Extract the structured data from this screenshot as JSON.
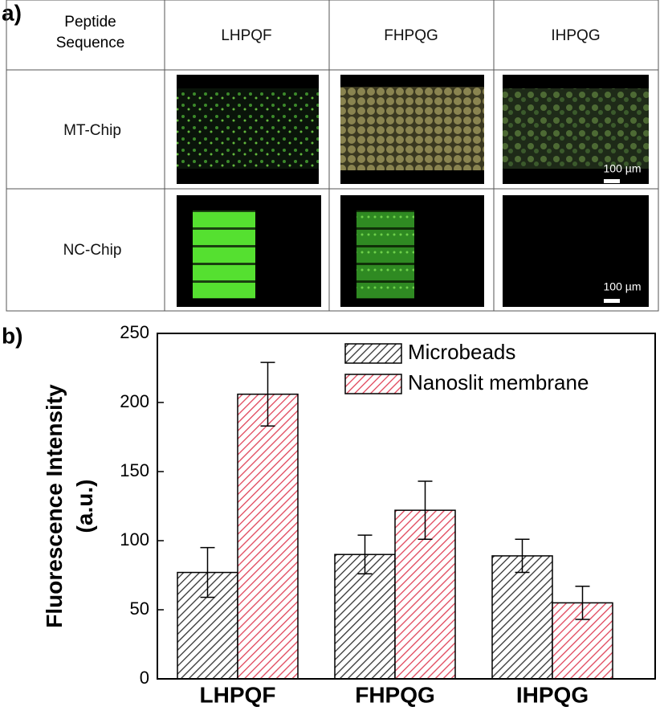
{
  "panel_labels": [
    "a)",
    "b)"
  ],
  "panel_a": {
    "header": [
      "Peptide Sequence",
      "LHPQF",
      "FHPQG",
      "IHPQG"
    ],
    "rows": [
      {
        "label": "MT-Chip",
        "scale_bar": "100 µm"
      },
      {
        "label": "NC-Chip",
        "scale_bar": "100 µm"
      }
    ]
  },
  "chart_data": {
    "type": "bar",
    "ylabel": [
      "Fluorescence Intensity",
      "(a.u.)"
    ],
    "categories": [
      "LHPQF",
      "FHPQG",
      "IHPQG"
    ],
    "series": [
      {
        "name": "Microbeads",
        "color": "#333333",
        "values": [
          77,
          90,
          89
        ],
        "errors": [
          18,
          14,
          12
        ]
      },
      {
        "name": "Nanoslit membrane",
        "color": "#e0455a",
        "values": [
          206,
          122,
          55
        ],
        "errors": [
          23,
          21,
          12
        ]
      }
    ],
    "ylim": [
      0,
      250
    ],
    "yticks": [
      0,
      50,
      100,
      150,
      200,
      250
    ],
    "legend": "upper right"
  }
}
